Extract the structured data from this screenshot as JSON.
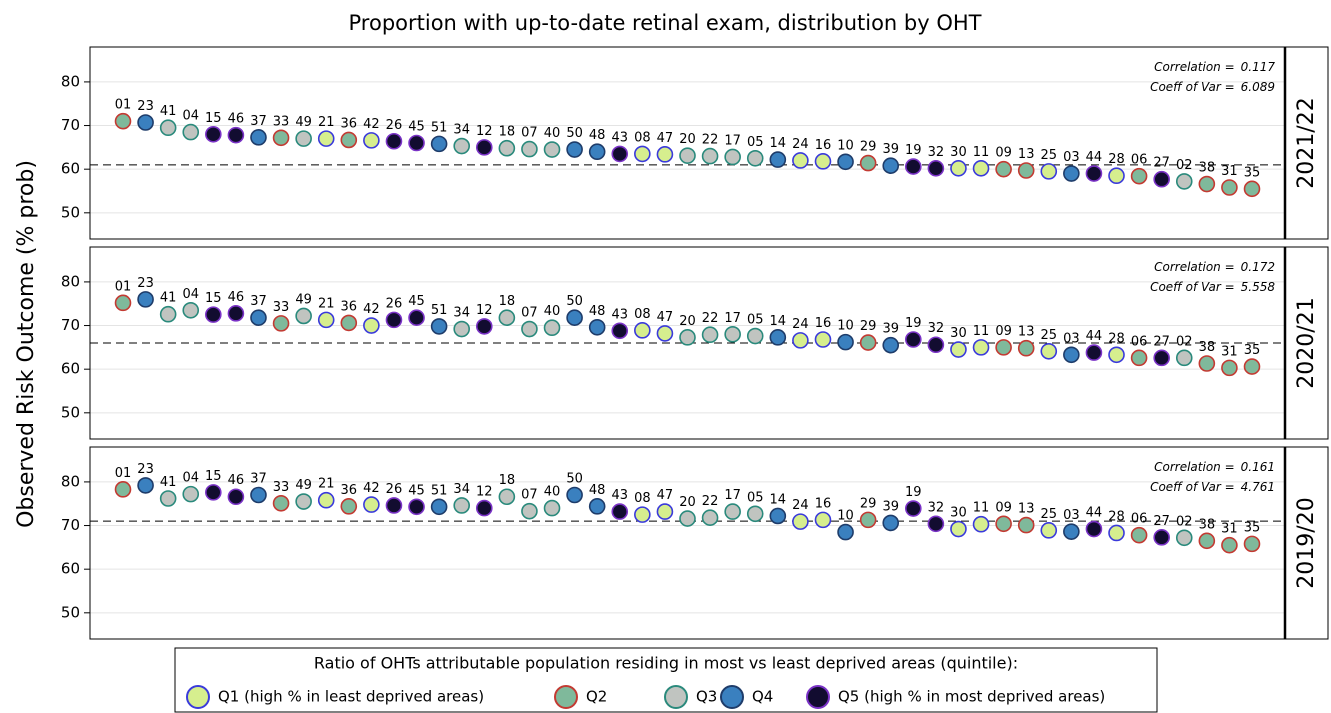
{
  "chart_data": {
    "type": "dot",
    "title": "Proportion with up-to-date retinal exam, distribution by OHT",
    "y_label": "Observed Risk Outcome (% prob)",
    "categories": [
      "01",
      "23",
      "41",
      "04",
      "15",
      "46",
      "37",
      "33",
      "49",
      "21",
      "36",
      "42",
      "26",
      "45",
      "51",
      "34",
      "12",
      "18",
      "07",
      "40",
      "50",
      "48",
      "43",
      "08",
      "47",
      "20",
      "22",
      "17",
      "05",
      "14",
      "24",
      "16",
      "10",
      "29",
      "39",
      "19",
      "32",
      "30",
      "11",
      "09",
      "13",
      "25",
      "03",
      "44",
      "28",
      "06",
      "27",
      "02",
      "38",
      "31",
      "35"
    ],
    "quintile": [
      1,
      3,
      2,
      2,
      4,
      4,
      3,
      1,
      2,
      0,
      1,
      0,
      4,
      4,
      3,
      2,
      4,
      2,
      2,
      2,
      3,
      3,
      4,
      0,
      0,
      2,
      2,
      2,
      2,
      3,
      0,
      0,
      3,
      1,
      3,
      4,
      4,
      0,
      0,
      1,
      1,
      0,
      3,
      4,
      0,
      1,
      4,
      2,
      1,
      1,
      1
    ],
    "ylim": [
      44,
      88
    ],
    "yticks": [
      50,
      60,
      70,
      80
    ],
    "correlation_label": "Correlation =",
    "cv_label": "Coeff of Var =",
    "panels": [
      {
        "label": "2021/22",
        "correlation": 0.117,
        "cv": 6.089,
        "reference": 61,
        "values": [
          71,
          70.7,
          69.5,
          68.5,
          68,
          67.8,
          67.3,
          67.2,
          67,
          67,
          66.7,
          66.6,
          66.4,
          66,
          65.8,
          65.3,
          65,
          64.8,
          64.6,
          64.5,
          64.5,
          64,
          63.5,
          63.5,
          63.4,
          63.1,
          63,
          62.8,
          62.5,
          62.2,
          62,
          61.8,
          61.7,
          61.4,
          60.8,
          60.6,
          60.2,
          60.2,
          60.2,
          60,
          59.7,
          59.5,
          59,
          59,
          58.5,
          58.4,
          57.7,
          57.2,
          56.6,
          55.8,
          55.5
        ]
      },
      {
        "label": "2020/21",
        "correlation": 0.172,
        "cv": 5.558,
        "reference": 66,
        "values": [
          75.2,
          76,
          72.6,
          73.5,
          72.5,
          72.8,
          71.8,
          70.5,
          72.2,
          71.3,
          70.6,
          70,
          71.3,
          71.8,
          69.8,
          69.2,
          69.8,
          71.8,
          69.2,
          69.5,
          71.8,
          69.6,
          68.8,
          68.9,
          68.2,
          67.3,
          67.9,
          68,
          67.6,
          67.3,
          66.6,
          66.8,
          66.2,
          66.1,
          65.5,
          66.8,
          65.6,
          64.5,
          65,
          65,
          64.8,
          64.1,
          63.3,
          63.8,
          63.3,
          62.6,
          62.6,
          62.6,
          61.3,
          60.3,
          60.6
        ]
      },
      {
        "label": "2019/20",
        "correlation": 0.161,
        "cv": 4.761,
        "reference": 71,
        "values": [
          78.3,
          79.2,
          76.2,
          77.2,
          77.6,
          76.6,
          77,
          75.1,
          75.5,
          75.8,
          74.4,
          74.8,
          74.6,
          74.3,
          74.3,
          74.6,
          74,
          76.6,
          73.3,
          74,
          77,
          74.4,
          73.2,
          72.5,
          73.2,
          71.6,
          71.8,
          73.2,
          72.7,
          72.2,
          70.9,
          71.3,
          68.5,
          71.3,
          70.6,
          73.9,
          70.4,
          69.2,
          70.3,
          70.4,
          70.1,
          68.9,
          68.6,
          69.2,
          68.3,
          67.8,
          67.3,
          67.2,
          66.5,
          65.5,
          65.8
        ]
      }
    ],
    "legend": {
      "title": "Ratio of OHTs attributable population residing in most vs least deprived areas (quintile):",
      "series": [
        {
          "name": "Q1 (high % in least deprived areas)",
          "color": "#d6ee8e",
          "edge": "#3a3adb"
        },
        {
          "name": "Q2",
          "color": "#7fb99b",
          "edge": "#c33a32"
        },
        {
          "name": "Q3",
          "color": "#c0c4c0",
          "edge": "#2a8a7c"
        },
        {
          "name": "Q4",
          "color": "#3a80bf",
          "edge": "#1e3c6a"
        },
        {
          "name": "Q5 (high % in most deprived areas)",
          "color": "#120c30",
          "edge": "#7a32c6"
        }
      ]
    }
  }
}
